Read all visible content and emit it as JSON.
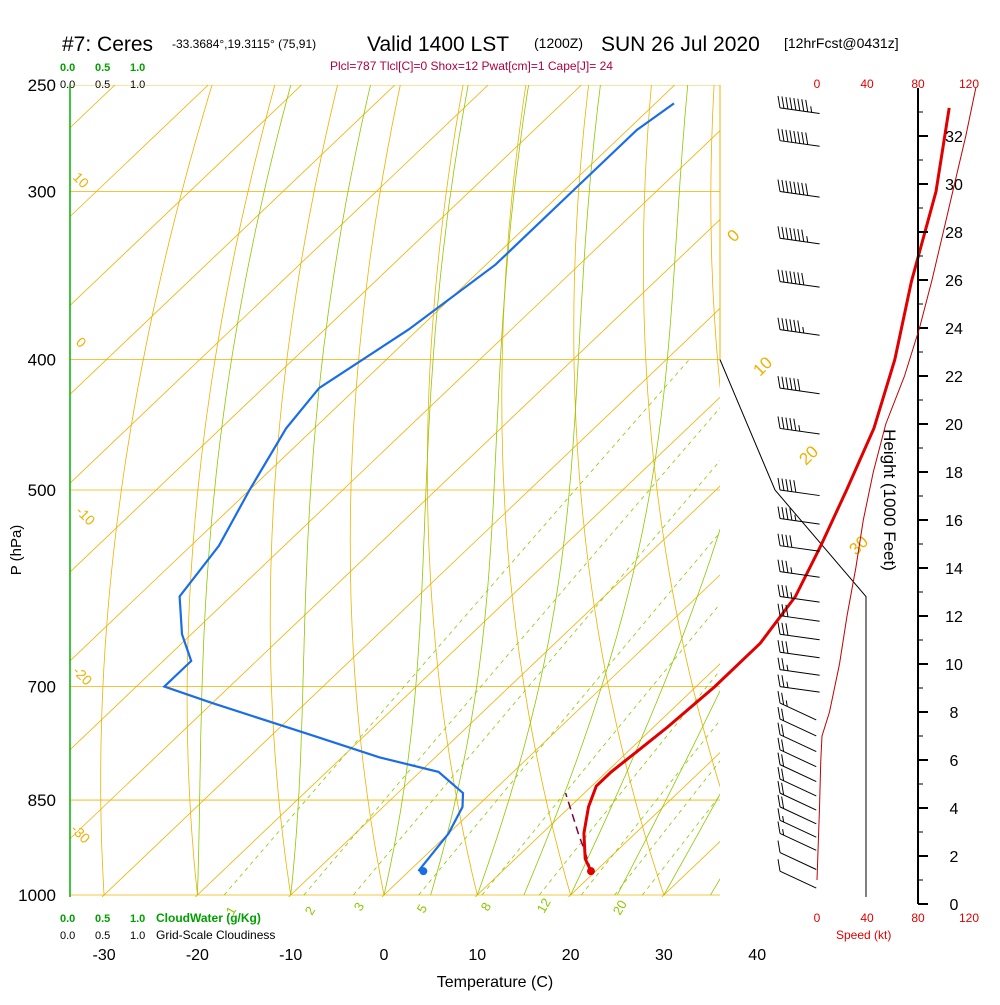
{
  "chart_data": {
    "type": "skew-t sounding",
    "title": {
      "station": "#7: Ceres",
      "coords": "-33.3684°,19.3115° (75,91)",
      "valid": "Valid 1400 LST",
      "utc": "(1200Z)",
      "date": "SUN 26 Jul 2020",
      "forecast": "[12hrFcst@0431z]"
    },
    "indices": "Plcl=787 Tlcl[C]=0 Shox=12 Pwat[cm]=1 Cape[J]= 24",
    "pressure_axis": {
      "label": "P (hPa)",
      "levels": [
        250,
        300,
        400,
        500,
        700,
        850,
        1000
      ],
      "tick_labels": [
        "250",
        "300",
        "400",
        "500",
        "700",
        "850",
        "1000"
      ]
    },
    "temperature_axis": {
      "label": "Temperature (C)",
      "range": [
        -34,
        36
      ],
      "ticks": [
        -30,
        -20,
        -10,
        0,
        10,
        20,
        30,
        40
      ],
      "tick_labels": [
        "-30",
        "-20",
        "-10",
        "0",
        "10",
        "20",
        "30",
        "40"
      ]
    },
    "height_axis": {
      "label": "Height (1000 Feet)",
      "range": [
        0,
        34
      ],
      "ticks": [
        0,
        2,
        4,
        6,
        8,
        10,
        12,
        14,
        16,
        18,
        20,
        22,
        24,
        26,
        28,
        30,
        32
      ],
      "tick_labels": [
        "0",
        "2",
        "4",
        "6",
        "8",
        "10",
        "12",
        "14",
        "16",
        "18",
        "20",
        "22",
        "24",
        "26",
        "28",
        "30",
        "32"
      ]
    },
    "speed_axis": {
      "label": "Speed (kt)",
      "ticks": [
        0,
        40,
        80,
        120
      ],
      "tick_labels": [
        "0",
        "40",
        "80",
        "120"
      ]
    },
    "cloud_axis": {
      "cloudwater_label": "CloudWater (g/Kg)",
      "cloudiness_label": "Grid-Scale Cloudiness",
      "tick_labels": [
        "0.0",
        "0.5",
        "1.0"
      ]
    },
    "temperature_profile": [
      {
        "p": 960,
        "t": 19.5
      },
      {
        "p": 940,
        "t": 17.5
      },
      {
        "p": 900,
        "t": 14.5
      },
      {
        "p": 860,
        "t": 12.0
      },
      {
        "p": 830,
        "t": 10.5
      },
      {
        "p": 810,
        "t": 10.5
      },
      {
        "p": 780,
        "t": 11.0
      },
      {
        "p": 750,
        "t": 11.5
      },
      {
        "p": 700,
        "t": 12.0
      },
      {
        "p": 650,
        "t": 12.0
      },
      {
        "p": 600,
        "t": 10.5
      },
      {
        "p": 550,
        "t": 7.5
      },
      {
        "p": 500,
        "t": 4.0
      },
      {
        "p": 450,
        "t": 0.0
      },
      {
        "p": 400,
        "t": -5.5
      },
      {
        "p": 350,
        "t": -12.5
      },
      {
        "p": 300,
        "t": -20.0
      },
      {
        "p": 260,
        "t": -28.0
      }
    ],
    "dewpoint_profile": [
      {
        "p": 960,
        "t": 1.0
      },
      {
        "p": 900,
        "t": 0.0
      },
      {
        "p": 860,
        "t": -1.5
      },
      {
        "p": 840,
        "t": -3.0
      },
      {
        "p": 810,
        "t": -8.0
      },
      {
        "p": 790,
        "t": -16.0
      },
      {
        "p": 760,
        "t": -26.0
      },
      {
        "p": 720,
        "t": -40.0
      },
      {
        "p": 700,
        "t": -47.0
      },
      {
        "p": 670,
        "t": -47.0
      },
      {
        "p": 640,
        "t": -51.0
      },
      {
        "p": 600,
        "t": -55.5
      },
      {
        "p": 550,
        "t": -57.0
      },
      {
        "p": 500,
        "t": -60.0
      },
      {
        "p": 450,
        "t": -63.0
      },
      {
        "p": 420,
        "t": -64.0
      },
      {
        "p": 380,
        "t": -61.0
      },
      {
        "p": 340,
        "t": -59.0
      },
      {
        "p": 300,
        "t": -59.0
      },
      {
        "p": 270,
        "t": -59.0
      },
      {
        "p": 258,
        "t": -58.0
      }
    ],
    "parcel_path": [
      {
        "p": 960,
        "t": 19.5
      },
      {
        "p": 930,
        "t": 16.8
      },
      {
        "p": 900,
        "t": 13.9
      },
      {
        "p": 870,
        "t": 11.0
      },
      {
        "p": 840,
        "t": 8.0
      }
    ],
    "surface_temperature": {
      "p": 960,
      "t": 19.5
    },
    "surface_dewpoint": {
      "p": 960,
      "t": 1.0
    },
    "wind_speed_profile": [
      {
        "h": 1.0,
        "kt": 0
      },
      {
        "h": 4.0,
        "kt": 2
      },
      {
        "h": 6.0,
        "kt": 3
      },
      {
        "h": 7.0,
        "kt": 4
      },
      {
        "h": 8.0,
        "kt": 10
      },
      {
        "h": 10.0,
        "kt": 18
      },
      {
        "h": 12.0,
        "kt": 24
      },
      {
        "h": 14.0,
        "kt": 31
      },
      {
        "h": 16.0,
        "kt": 37
      },
      {
        "h": 18.0,
        "kt": 45
      },
      {
        "h": 20.0,
        "kt": 55
      },
      {
        "h": 22.0,
        "kt": 70
      },
      {
        "h": 24.0,
        "kt": 82
      },
      {
        "h": 26.0,
        "kt": 92
      },
      {
        "h": 28.0,
        "kt": 101
      },
      {
        "h": 30.0,
        "kt": 110
      },
      {
        "h": 32.0,
        "kt": 119
      },
      {
        "h": 34.0,
        "kt": 127
      }
    ],
    "wind_barbs": [
      {
        "p": 960,
        "speed_kt": 10
      },
      {
        "p": 930,
        "speed_kt": 10
      },
      {
        "p": 900,
        "speed_kt": 15
      },
      {
        "p": 880,
        "speed_kt": 15
      },
      {
        "p": 860,
        "speed_kt": 20
      },
      {
        "p": 840,
        "speed_kt": 20
      },
      {
        "p": 820,
        "speed_kt": 20
      },
      {
        "p": 800,
        "speed_kt": 20
      },
      {
        "p": 780,
        "speed_kt": 20
      },
      {
        "p": 760,
        "speed_kt": 20
      },
      {
        "p": 740,
        "speed_kt": 20
      },
      {
        "p": 720,
        "speed_kt": 25
      },
      {
        "p": 700,
        "speed_kt": 25
      },
      {
        "p": 680,
        "speed_kt": 25
      },
      {
        "p": 660,
        "speed_kt": 30
      },
      {
        "p": 640,
        "speed_kt": 30
      },
      {
        "p": 620,
        "speed_kt": 30
      },
      {
        "p": 600,
        "speed_kt": 35
      },
      {
        "p": 575,
        "speed_kt": 35
      },
      {
        "p": 550,
        "speed_kt": 40
      },
      {
        "p": 525,
        "speed_kt": 45
      },
      {
        "p": 500,
        "speed_kt": 50
      },
      {
        "p": 450,
        "speed_kt": 55
      },
      {
        "p": 420,
        "speed_kt": 60
      },
      {
        "p": 380,
        "speed_kt": 65
      },
      {
        "p": 350,
        "speed_kt": 70
      },
      {
        "p": 325,
        "speed_kt": 75
      },
      {
        "p": 300,
        "speed_kt": 80
      },
      {
        "p": 275,
        "speed_kt": 80
      },
      {
        "p": 260,
        "speed_kt": 85
      }
    ],
    "isotherm_labels": [
      "0",
      "10",
      "20",
      "30"
    ],
    "isotherm_label_temps": [
      0,
      10,
      20,
      30
    ],
    "dry_adiabat_labels": [
      "10",
      "0",
      "-10",
      "-20",
      "-30"
    ],
    "dry_adiabat_label_thetas": [
      10,
      0,
      -10,
      -20,
      -30
    ],
    "mixing_ratio_labels": [
      "1",
      "2",
      "3",
      "5",
      "8",
      "12",
      "20"
    ],
    "mixing_ratio_values": [
      1,
      2,
      3,
      5,
      8,
      12,
      20
    ],
    "legend_colors": {
      "temperature": "#e00000",
      "dewpoint": "#1a6de8",
      "isotherm": "#f0b000",
      "dry_adiabat": "#f0b000",
      "moist_adiabat": "#8cc800",
      "mixing_ratio": "#8cc800",
      "cloud": "#00a000",
      "wind_profile": "#c00000",
      "indices_text": "#b00040"
    }
  }
}
